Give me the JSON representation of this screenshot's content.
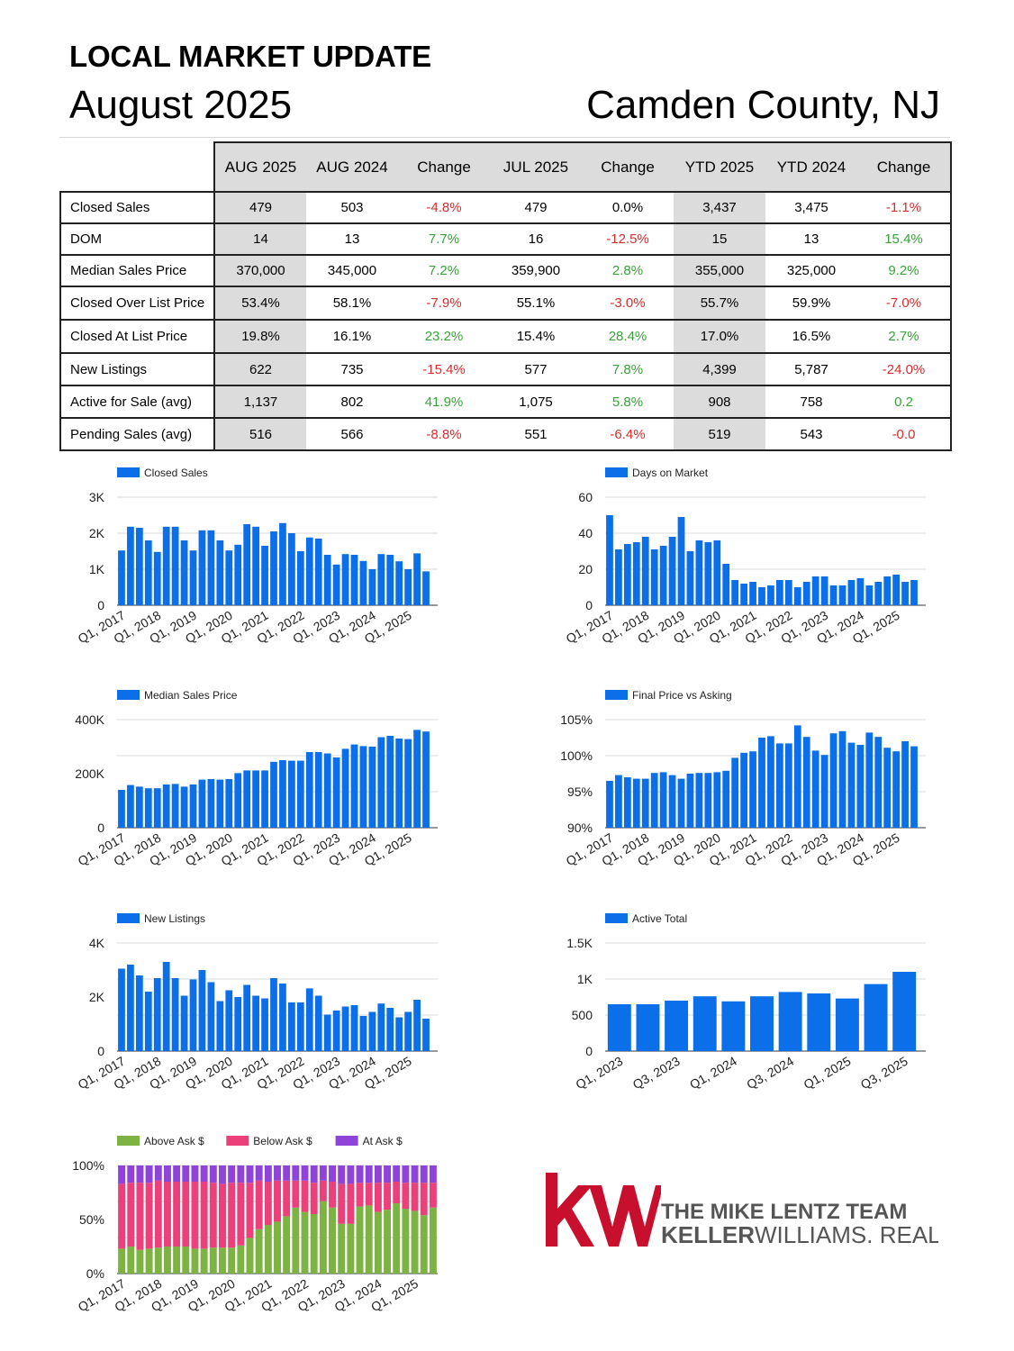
{
  "header": {
    "title": "LOCAL MARKET UPDATE",
    "date": "August 2025",
    "location": "Camden County, NJ"
  },
  "table": {
    "columns": [
      "AUG 2025",
      "AUG 2024",
      "Change",
      "JUL 2025",
      "Change",
      "YTD 2025",
      "YTD 2024",
      "Change"
    ],
    "rows": [
      {
        "label": "Closed Sales",
        "values": [
          "479",
          "503",
          "-4.8%",
          "479",
          "0.0%",
          "3,437",
          "3,475",
          "-1.1%"
        ],
        "dir": [
          "",
          "",
          "neg",
          "",
          "neu",
          "",
          "",
          "neg"
        ]
      },
      {
        "label": "DOM",
        "values": [
          "14",
          "13",
          "7.7%",
          "16",
          "-12.5%",
          "15",
          "13",
          "15.4%"
        ],
        "dir": [
          "",
          "",
          "pos",
          "",
          "neg",
          "",
          "",
          "pos"
        ]
      },
      {
        "label": "Median Sales Price",
        "values": [
          "370,000",
          "345,000",
          "7.2%",
          "359,900",
          "2.8%",
          "355,000",
          "325,000",
          "9.2%"
        ],
        "dir": [
          "",
          "",
          "pos",
          "",
          "pos",
          "",
          "",
          "pos"
        ]
      },
      {
        "label": "Closed Over List Price",
        "values": [
          "53.4%",
          "58.1%",
          "-7.9%",
          "55.1%",
          "-3.0%",
          "55.7%",
          "59.9%",
          "-7.0%"
        ],
        "dir": [
          "",
          "",
          "neg",
          "",
          "neg",
          "",
          "",
          "neg"
        ]
      },
      {
        "label": "Closed At List Price",
        "values": [
          "19.8%",
          "16.1%",
          "23.2%",
          "15.4%",
          "28.4%",
          "17.0%",
          "16.5%",
          "2.7%"
        ],
        "dir": [
          "",
          "",
          "pos",
          "",
          "pos",
          "",
          "",
          "pos"
        ]
      },
      {
        "label": "New Listings",
        "values": [
          "622",
          "735",
          "-15.4%",
          "577",
          "7.8%",
          "4,399",
          "5,787",
          "-24.0%"
        ],
        "dir": [
          "",
          "",
          "neg",
          "",
          "pos",
          "",
          "",
          "neg"
        ]
      },
      {
        "label": "Active for Sale (avg)",
        "values": [
          "1,137",
          "802",
          "41.9%",
          "1,075",
          "5.8%",
          "908",
          "758",
          "0.2"
        ],
        "dir": [
          "",
          "",
          "pos",
          "",
          "pos",
          "",
          "",
          "pos"
        ]
      },
      {
        "label": "Pending Sales (avg)",
        "values": [
          "516",
          "566",
          "-8.8%",
          "551",
          "-6.4%",
          "519",
          "543",
          "-0.0"
        ],
        "dir": [
          "",
          "",
          "neg",
          "",
          "neg",
          "",
          "",
          "neg"
        ]
      }
    ]
  },
  "colors": {
    "bar": "#0a6fe8",
    "above": "#7cb342",
    "below": "#ec407a",
    "at": "#8e44d8",
    "positive": "#36a336",
    "negative": "#d32f2f",
    "logo_red": "#c8102e",
    "logo_gray": "#555555"
  },
  "logo": {
    "mark": "kw",
    "line1": "THE MIKE LENTZ TEAM",
    "line2_bold": "KELLER",
    "line2_light": "WILLIAMS. REALTY"
  },
  "chart_data": [
    {
      "type": "bar",
      "legend": "Closed Sales",
      "categories": [
        "Q1, 2017",
        "",
        "",
        "",
        "Q1, 2018",
        "",
        "",
        "",
        "Q1, 2019",
        "",
        "",
        "",
        "Q1, 2020",
        "",
        "",
        "",
        "Q1, 2021",
        "",
        "",
        "",
        "Q1, 2022",
        "",
        "",
        "",
        "Q1, 2023",
        "",
        "",
        "",
        "Q1, 2024",
        "",
        "",
        "",
        "Q1, 2025",
        "",
        ""
      ],
      "values": [
        1520,
        2180,
        2150,
        1800,
        1480,
        2180,
        2180,
        1800,
        1520,
        2080,
        2080,
        1800,
        1520,
        1680,
        2250,
        2180,
        1650,
        2050,
        2280,
        2000,
        1500,
        1880,
        1850,
        1400,
        1130,
        1420,
        1400,
        1230,
        1000,
        1420,
        1400,
        1220,
        1000,
        1440,
        940
      ],
      "yticks": [
        0,
        1000,
        2000,
        3000
      ],
      "yticklabels": [
        "0",
        "1K",
        "2K",
        "3K"
      ],
      "ylim": [
        0,
        3000
      ]
    },
    {
      "type": "bar",
      "legend": "Days on Market",
      "categories": [
        "Q1, 2017",
        "",
        "",
        "",
        "Q1, 2018",
        "",
        "",
        "",
        "Q1, 2019",
        "",
        "",
        "",
        "Q1, 2020",
        "",
        "",
        "",
        "Q1, 2021",
        "",
        "",
        "",
        "Q1, 2022",
        "",
        "",
        "",
        "Q1, 2023",
        "",
        "",
        "",
        "Q1, 2024",
        "",
        "",
        "",
        "Q1, 2025",
        "",
        ""
      ],
      "values": [
        50,
        31,
        34,
        35,
        38,
        31,
        33,
        38,
        49,
        30,
        36,
        35,
        36,
        23,
        14,
        12,
        13,
        10,
        11,
        14,
        14,
        10,
        13,
        16,
        16,
        11,
        11,
        14,
        15,
        11,
        13,
        16,
        17,
        13,
        14
      ],
      "yticks": [
        0,
        20,
        40,
        60
      ],
      "yticklabels": [
        "0",
        "20",
        "40",
        "60"
      ],
      "ylim": [
        0,
        60
      ]
    },
    {
      "type": "bar",
      "legend": "Median Sales Price",
      "categories": [
        "Q1, 2017",
        "",
        "",
        "",
        "Q1, 2018",
        "",
        "",
        "",
        "Q1, 2019",
        "",
        "",
        "",
        "Q1, 2020",
        "",
        "",
        "",
        "Q1, 2021",
        "",
        "",
        "",
        "Q1, 2022",
        "",
        "",
        "",
        "Q1, 2023",
        "",
        "",
        "",
        "Q1, 2024",
        "",
        "",
        "",
        "Q1, 2025",
        "",
        ""
      ],
      "values": [
        140000,
        158000,
        152000,
        146000,
        146000,
        160000,
        162000,
        152000,
        160000,
        178000,
        180000,
        178000,
        180000,
        202000,
        212000,
        212000,
        212000,
        244000,
        250000,
        248000,
        248000,
        280000,
        280000,
        275000,
        260000,
        292000,
        308000,
        302000,
        300000,
        335000,
        340000,
        330000,
        328000,
        362000,
        356000
      ],
      "yticks": [
        0,
        200000,
        400000
      ],
      "yticklabels": [
        "0",
        "200K",
        "400K"
      ],
      "ylim": [
        0,
        400000
      ]
    },
    {
      "type": "bar",
      "legend": "Final Price vs Asking",
      "categories": [
        "Q1, 2017",
        "",
        "",
        "",
        "Q1, 2018",
        "",
        "",
        "",
        "Q1, 2019",
        "",
        "",
        "",
        "Q1, 2020",
        "",
        "",
        "",
        "Q1, 2021",
        "",
        "",
        "",
        "Q1, 2022",
        "",
        "",
        "",
        "Q1, 2023",
        "",
        "",
        "",
        "Q1, 2024",
        "",
        "",
        "",
        "Q1, 2025",
        "",
        ""
      ],
      "values": [
        96.5,
        97.3,
        97.0,
        96.8,
        96.8,
        97.6,
        97.7,
        97.3,
        96.8,
        97.5,
        97.6,
        97.6,
        97.7,
        97.9,
        99.7,
        100.4,
        100.6,
        102.5,
        102.7,
        101.7,
        101.7,
        104.2,
        102.6,
        100.7,
        100.1,
        103.1,
        103.4,
        101.8,
        101.5,
        103.2,
        102.6,
        101.1,
        100.6,
        102.0,
        101.3
      ],
      "yticks": [
        90,
        95,
        100,
        105
      ],
      "yticklabels": [
        "90%",
        "95%",
        "100%",
        "105%"
      ],
      "ylim": [
        90,
        105
      ]
    },
    {
      "type": "bar",
      "legend": "New Listings",
      "categories": [
        "Q1, 2017",
        "",
        "",
        "",
        "Q1, 2018",
        "",
        "",
        "",
        "Q1, 2019",
        "",
        "",
        "",
        "Q1, 2020",
        "",
        "",
        "",
        "Q1, 2021",
        "",
        "",
        "",
        "Q1, 2022",
        "",
        "",
        "",
        "Q1, 2023",
        "",
        "",
        "",
        "Q1, 2024",
        "",
        "",
        "",
        "Q1, 2025",
        "",
        ""
      ],
      "values": [
        3050,
        3200,
        2800,
        2200,
        2700,
        3300,
        2700,
        2050,
        2650,
        3000,
        2550,
        1850,
        2250,
        2000,
        2450,
        2050,
        1950,
        2700,
        2500,
        1800,
        1800,
        2320,
        2050,
        1350,
        1500,
        1650,
        1700,
        1300,
        1450,
        1760,
        1600,
        1250,
        1450,
        1900,
        1200
      ],
      "yticks": [
        0,
        2000,
        4000
      ],
      "yticklabels": [
        "0",
        "2K",
        "4K"
      ],
      "ylim": [
        0,
        4000
      ]
    },
    {
      "type": "bar",
      "legend": "Active Total",
      "categories": [
        "Q1, 2023",
        "",
        "Q3, 2023",
        "",
        "Q1, 2024",
        "",
        "Q3, 2024",
        "",
        "Q1, 2025",
        "",
        "Q3, 2025"
      ],
      "values": [
        650,
        650,
        700,
        760,
        690,
        760,
        820,
        800,
        730,
        930,
        1100
      ],
      "yticks": [
        0,
        500,
        1000,
        1500
      ],
      "yticklabels": [
        "0",
        "500",
        "1K",
        "1.5K"
      ],
      "ylim": [
        0,
        1500
      ]
    },
    {
      "type": "bar",
      "stacked": true,
      "categories": [
        "Q1, 2017",
        "",
        "",
        "",
        "Q1, 2018",
        "",
        "",
        "",
        "Q1, 2019",
        "",
        "",
        "",
        "Q1, 2020",
        "",
        "",
        "",
        "Q1, 2021",
        "",
        "",
        "",
        "Q1, 2022",
        "",
        "",
        "",
        "Q1, 2023",
        "",
        "",
        "",
        "Q1, 2024",
        "",
        "",
        "",
        "Q1, 2025",
        "",
        ""
      ],
      "series": [
        {
          "name": "Above Ask $",
          "values": [
            23,
            25,
            22,
            23,
            24,
            25,
            25,
            25,
            23,
            23,
            24,
            24,
            24,
            26,
            33,
            41,
            45,
            48,
            53,
            61,
            57,
            55,
            67,
            61,
            46,
            46,
            62,
            63,
            57,
            59,
            65,
            60,
            58,
            54,
            61
          ]
        },
        {
          "name": "Below Ask $",
          "values": [
            60,
            59,
            62,
            61,
            62,
            60,
            60,
            60,
            62,
            62,
            60,
            59,
            60,
            58,
            51,
            45,
            40,
            38,
            33,
            25,
            29,
            29,
            19,
            24,
            37,
            37,
            22,
            21,
            27,
            25,
            20,
            24,
            26,
            30,
            23
          ]
        },
        {
          "name": "At Ask $",
          "values": [
            17,
            16,
            16,
            16,
            14,
            15,
            15,
            15,
            15,
            15,
            16,
            17,
            16,
            16,
            16,
            14,
            15,
            14,
            14,
            14,
            14,
            16,
            14,
            15,
            17,
            17,
            16,
            16,
            16,
            16,
            15,
            16,
            16,
            16,
            16
          ]
        }
      ],
      "yticks": [
        0,
        50,
        100
      ],
      "yticklabels": [
        "0%",
        "50%",
        "100%"
      ],
      "ylim": [
        0,
        100
      ]
    }
  ]
}
